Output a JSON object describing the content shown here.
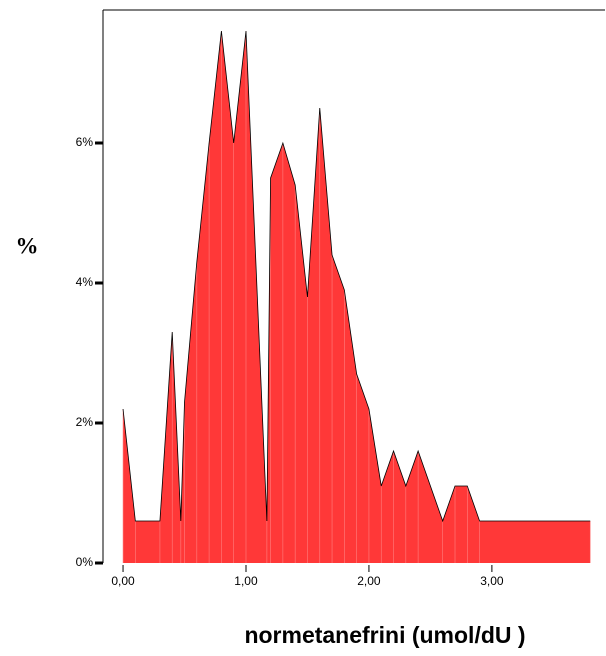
{
  "chart_data": {
    "type": "area",
    "x_label": "normetanefrini (umol/dU )",
    "y_label": "%",
    "x": [
      0.0,
      0.1,
      0.3,
      0.4,
      0.47,
      0.5,
      0.6,
      0.7,
      0.8,
      0.9,
      1.0,
      1.17,
      1.2,
      1.3,
      1.4,
      1.5,
      1.6,
      1.7,
      1.8,
      1.9,
      2.0,
      2.1,
      2.2,
      2.3,
      2.4,
      2.6,
      2.7,
      2.8,
      2.9,
      3.8
    ],
    "values": [
      2.2,
      0.6,
      0.6,
      3.3,
      0.6,
      2.3,
      4.3,
      6.0,
      7.6,
      6.0,
      7.6,
      0.6,
      5.5,
      6.0,
      5.4,
      3.8,
      6.5,
      4.4,
      3.9,
      2.7,
      2.2,
      1.1,
      1.6,
      1.1,
      1.6,
      0.6,
      1.1,
      1.1,
      0.6,
      0.6
    ],
    "color": "#ff3838",
    "xlim": [
      -0.163,
      3.92
    ],
    "ylim": [
      0,
      7.9
    ],
    "xticks": [
      {
        "value": 0,
        "label": "0,00"
      },
      {
        "value": 1,
        "label": "1,00"
      },
      {
        "value": 2,
        "label": "2,00"
      },
      {
        "value": 3,
        "label": "3,00"
      }
    ],
    "yticks": [
      {
        "value": 0,
        "label": "0%"
      },
      {
        "value": 2,
        "label": "2%"
      },
      {
        "value": 4,
        "label": "4%"
      },
      {
        "value": 6,
        "label": "6%"
      }
    ]
  }
}
